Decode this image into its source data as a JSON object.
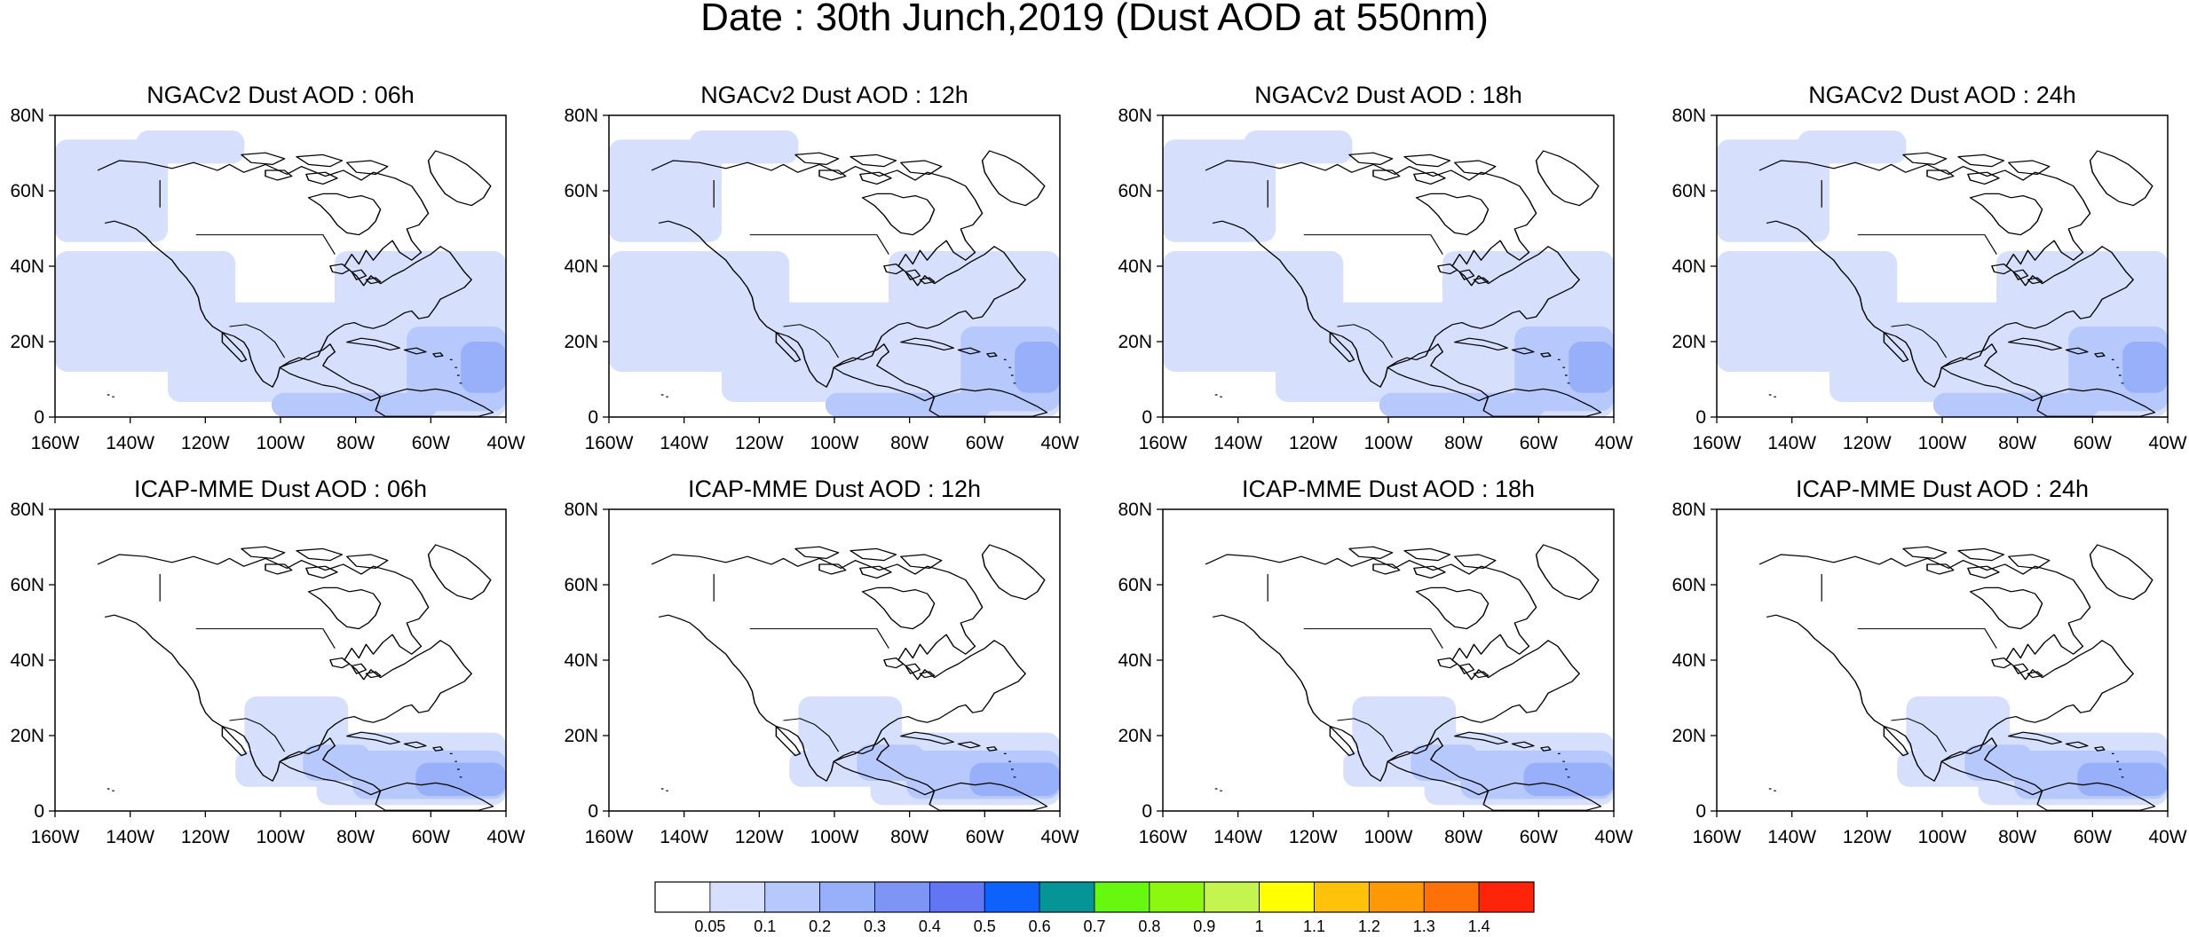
{
  "figure": {
    "title": "Date : 30th Junch,2019 (Dust AOD at 550nm)"
  },
  "axes": {
    "lon_ticks": [
      "160W",
      "140W",
      "120W",
      "100W",
      "80W",
      "60W",
      "40W"
    ],
    "lat_ticks": [
      "80N",
      "60N",
      "40N",
      "20N",
      "0"
    ],
    "lon_range": [
      -160,
      -40
    ],
    "lat_range": [
      0,
      80
    ]
  },
  "panels": [
    {
      "id": "ngac-06",
      "title": "NGACv2 Dust AOD : 06h",
      "model": "NGACv2",
      "hour": "06h"
    },
    {
      "id": "ngac-12",
      "title": "NGACv2 Dust AOD : 12h",
      "model": "NGACv2",
      "hour": "12h"
    },
    {
      "id": "ngac-18",
      "title": "NGACv2 Dust AOD : 18h",
      "model": "NGACv2",
      "hour": "18h"
    },
    {
      "id": "ngac-24",
      "title": "NGACv2 Dust AOD : 24h",
      "model": "NGACv2",
      "hour": "24h"
    },
    {
      "id": "icap-06",
      "title": "ICAP-MME Dust AOD : 06h",
      "model": "ICAP-MME",
      "hour": "06h"
    },
    {
      "id": "icap-12",
      "title": "ICAP-MME Dust AOD : 12h",
      "model": "ICAP-MME",
      "hour": "12h"
    },
    {
      "id": "icap-18",
      "title": "ICAP-MME Dust AOD : 18h",
      "model": "ICAP-MME",
      "hour": "18h"
    },
    {
      "id": "icap-24",
      "title": "ICAP-MME Dust AOD : 24h",
      "model": "ICAP-MME",
      "hour": "24h"
    }
  ],
  "colorbar": {
    "labels": [
      "0.05",
      "0.1",
      "0.2",
      "0.3",
      "0.4",
      "0.5",
      "0.6",
      "0.7",
      "0.8",
      "0.9",
      "1",
      "1.1",
      "1.2",
      "1.3",
      "1.4"
    ],
    "colors": [
      "#ffffff",
      "#d6e0fd",
      "#b6c8fc",
      "#98aff9",
      "#7e95f5",
      "#6275f3",
      "#0d62fb",
      "#069596",
      "#66f80e",
      "#8df80f",
      "#c4f54f",
      "#ffff00",
      "#fec20a",
      "#fe9805",
      "#fe7008",
      "#fe240a"
    ]
  }
}
